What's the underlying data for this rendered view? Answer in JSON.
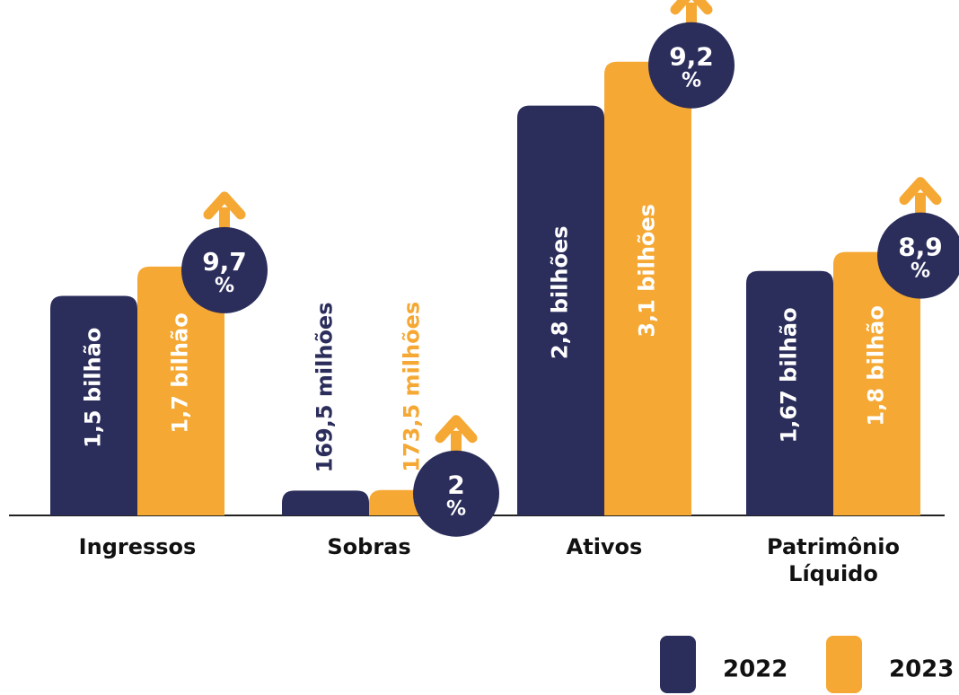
{
  "chart_data": {
    "type": "bar",
    "categories": [
      "Ingressos",
      "Sobras",
      "Ativos",
      "Patrimônio Líquido"
    ],
    "series": [
      {
        "name": "2022",
        "color": "#2b2d5b",
        "values": [
          1.5,
          0.1695,
          2.8,
          1.67
        ],
        "value_labels": [
          "1,5 bilhão",
          "169,5 milhões",
          "2,8 bilhões",
          "1,67 bilhão"
        ]
      },
      {
        "name": "2023",
        "color": "#f5a833",
        "values": [
          1.7,
          0.1735,
          3.1,
          1.8
        ],
        "value_labels": [
          "1,7 bilhão",
          "173,5 milhões",
          "3,1 bilhões",
          "1,8 bilhão"
        ]
      }
    ],
    "growth": [
      9.7,
      2,
      9.2,
      8.9
    ],
    "growth_labels": [
      "9,7",
      "2",
      "9,2",
      "8,9"
    ],
    "growth_unit": "%"
  }
}
